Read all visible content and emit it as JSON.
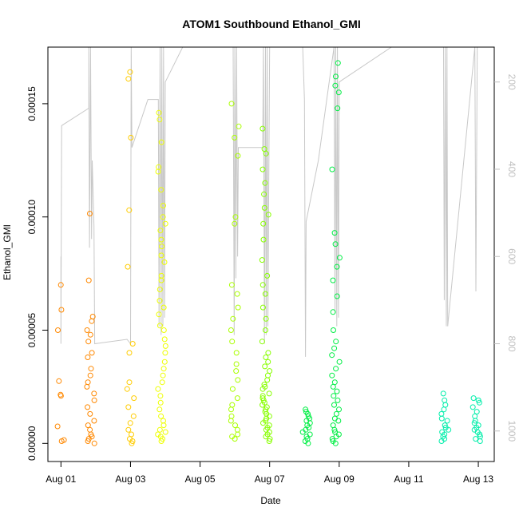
{
  "chart_data": {
    "type": "scatter",
    "title": "ATOM1 Southbound Ethanol_GMI",
    "xlabel": "Date",
    "ylabel": "Ethanol_GMI",
    "x_ticks": [
      {
        "day": 1,
        "label": "Aug 01"
      },
      {
        "day": 3,
        "label": "Aug 03"
      },
      {
        "day": 5,
        "label": "Aug 05"
      },
      {
        "day": 7,
        "label": "Aug 07"
      },
      {
        "day": 9,
        "label": "Aug 09"
      },
      {
        "day": 11,
        "label": "Aug 11"
      },
      {
        "day": 13,
        "label": "Aug 13"
      }
    ],
    "xlim": [
      "2016-07-31T15:00",
      "2016-08-13T11:00"
    ],
    "ylim": [
      -8e-06,
      0.000175
    ],
    "y_ticks": [
      {
        "value": 0.0,
        "label": "0.00000"
      },
      {
        "value": 5e-05,
        "label": "0.00005"
      },
      {
        "value": 0.0001,
        "label": "0.00010"
      },
      {
        "value": 0.00015,
        "label": "0.00015"
      }
    ],
    "secondary_axis": {
      "side": "right",
      "quantity": "altitude",
      "reversed": true,
      "range": [
        1070,
        120
      ],
      "ticks": [
        200,
        400,
        600,
        800,
        1000
      ],
      "color": "#c0c0c0"
    },
    "flights": [
      {
        "day": 1.0,
        "color": "#FF8800",
        "values": [
          7e-05,
          5.9e-05,
          5e-05,
          2.75e-05,
          2.15e-05,
          2.1e-05,
          7.5e-06,
          1.5e-06,
          1e-06
        ]
      },
      {
        "day": 1.85,
        "color": "#FF8800",
        "values": [
          0.0001015,
          7.2e-05,
          5.6e-05,
          5.4e-05,
          5e-05,
          4.8e-05,
          4.5e-05,
          4e-05,
          3.8e-05,
          3.3e-05,
          3e-05,
          2.7e-05,
          2.5e-05,
          2.2e-05,
          1.9e-05,
          1.6e-05,
          1.3e-05,
          1e-05,
          8e-06,
          6e-06,
          4e-06,
          3e-06,
          2e-06,
          1e-06,
          0.0
        ]
      },
      {
        "day": 3.0,
        "color": "#FFCC00",
        "values": [
          0.000164,
          0.000161,
          0.000135,
          0.000103,
          7.8e-05,
          4.4e-05,
          4e-05,
          2.7e-05,
          2.4e-05,
          2e-05,
          1.6e-05,
          1.2e-05,
          9e-06,
          6e-06,
          4e-06,
          2e-06,
          1e-06,
          0.0
        ]
      },
      {
        "day": 3.9,
        "color": "#EEFF00",
        "values": [
          0.000146,
          0.000143,
          0.000133,
          0.000122,
          0.00012,
          0.000112,
          0.000105,
          0.0001,
          9.7e-05,
          9.4e-05,
          9e-05,
          8.7e-05,
          8.3e-05,
          8e-05,
          7.4e-05,
          7.2e-05,
          6.8e-05,
          6.3e-05,
          6e-05,
          5.7e-05,
          5.2e-05,
          5e-05,
          4.6e-05,
          4.3e-05,
          4e-05,
          3.6e-05,
          3.3e-05,
          3e-05,
          2.7e-05,
          2.4e-05,
          2.1e-05,
          1.8e-05,
          1.5e-05,
          1.2e-05,
          1e-05,
          8e-06,
          6e-06,
          5e-06,
          4e-06,
          3e-06,
          2e-06,
          1e-06
        ]
      },
      {
        "day": 6.0,
        "color": "#AAFF00",
        "values": [
          0.00015,
          0.00014,
          0.000135,
          0.000127,
          0.0001,
          9.7e-05,
          7e-05,
          6.6e-05,
          6e-05,
          5.5e-05,
          5e-05,
          4.5e-05,
          4e-05,
          3.5e-05,
          3.2e-05,
          2.8e-05,
          2.4e-05,
          2e-05,
          1.7e-05,
          1.5e-05,
          1.2e-05,
          1e-05,
          8e-06,
          6e-06,
          4e-06,
          3e-06,
          2e-06
        ]
      },
      {
        "day": 6.9,
        "color": "#88FF00",
        "values": [
          0.000139,
          0.00013,
          0.000128,
          0.000121,
          0.000115,
          0.00011,
          0.000104,
          0.000101,
          9.7e-05,
          9e-05,
          8.1e-05,
          7.4e-05,
          7e-05,
          6.6e-05,
          6e-05,
          5.5e-05,
          5e-05,
          4.5e-05,
          4e-05,
          3.8e-05,
          3.6e-05,
          3.4e-05,
          3.2e-05,
          3e-05,
          2.8e-05,
          2.6e-05,
          2.5e-05,
          2.4e-05,
          2.2e-05,
          2.1e-05,
          2e-05,
          1.9e-05,
          1.8e-05,
          1.7e-05,
          1.6e-05,
          1.5e-05,
          1.4e-05,
          1.3e-05,
          1.2e-05,
          1.1e-05,
          1e-05,
          9e-06,
          8e-06,
          7e-06,
          6e-06,
          5e-06,
          4e-06,
          3e-06,
          2e-06,
          1e-06
        ]
      },
      {
        "day": 8.05,
        "color": "#00EE44",
        "values": [
          1.5e-05,
          1.4e-05,
          1.3e-05,
          1.2e-05,
          1.1e-05,
          1e-05,
          9e-06,
          8e-06,
          7e-06,
          6e-06,
          5e-06,
          4e-06,
          3e-06,
          2e-06,
          1e-06,
          0.0
        ]
      },
      {
        "day": 8.9,
        "color": "#00EE44",
        "values": [
          0.000168,
          0.000162,
          0.000158,
          0.000155,
          0.000148,
          0.000121,
          9.3e-05,
          8.8e-05,
          8.2e-05,
          7.8e-05,
          7.2e-05,
          6.5e-05,
          5.8e-05,
          5e-05,
          4.5e-05,
          4.2e-05,
          3.9e-05,
          3.6e-05,
          3.3e-05,
          3e-05,
          2.7e-05,
          2.5e-05,
          2.3e-05,
          2.1e-05,
          1.9e-05,
          1.7e-05,
          1.5e-05,
          1.3e-05,
          1.1e-05,
          1e-05,
          8e-06,
          6e-06,
          5e-06,
          4e-06,
          3e-06,
          2e-06,
          1e-06,
          0.0
        ]
      },
      {
        "day": 12.05,
        "color": "#00EEAA",
        "values": [
          2.2e-05,
          1.9e-05,
          1.7e-05,
          1.5e-05,
          1.3e-05,
          1.1e-05,
          1e-05,
          8e-06,
          7e-06,
          6e-06,
          5e-06,
          4e-06,
          3e-06,
          2e-06,
          1e-06
        ]
      },
      {
        "day": 12.95,
        "color": "#00EEAA",
        "values": [
          2e-05,
          1.9e-05,
          1.8e-05,
          1.6e-05,
          1.4e-05,
          1.2e-05,
          1e-05,
          9e-06,
          8e-06,
          7e-06,
          6e-06,
          5e-06,
          4e-06,
          3e-06,
          2e-06,
          1e-06
        ]
      }
    ],
    "altitude_trace": {
      "color": "#c8c8c8",
      "note": "aircraft altitude on secondary axis",
      "points": [
        [
          1.0,
          600
        ],
        [
          1.0,
          800
        ],
        [
          1.02,
          300
        ],
        [
          1.8,
          260
        ],
        [
          1.8,
          120
        ],
        [
          1.82,
          580
        ],
        [
          1.85,
          120
        ],
        [
          1.88,
          560
        ],
        [
          1.9,
          380
        ],
        [
          1.95,
          530
        ],
        [
          1.97,
          800
        ],
        [
          2.9,
          790
        ],
        [
          3.0,
          800
        ],
        [
          3.02,
          120
        ],
        [
          3.04,
          350
        ],
        [
          3.5,
          240
        ],
        [
          3.8,
          240
        ],
        [
          3.82,
          760
        ],
        [
          3.85,
          120
        ],
        [
          3.88,
          780
        ],
        [
          3.9,
          120
        ],
        [
          3.93,
          760
        ],
        [
          3.95,
          120
        ],
        [
          3.98,
          740
        ],
        [
          4.0,
          200
        ],
        [
          4.5,
          120
        ],
        [
          5.95,
          120
        ],
        [
          5.98,
          780
        ],
        [
          6.0,
          120
        ],
        [
          6.03,
          650
        ],
        [
          6.05,
          120
        ],
        [
          6.08,
          600
        ],
        [
          6.1,
          350
        ],
        [
          6.8,
          350
        ],
        [
          6.82,
          120
        ],
        [
          6.85,
          800
        ],
        [
          6.88,
          120
        ],
        [
          6.9,
          780
        ],
        [
          6.93,
          120
        ],
        [
          6.95,
          760
        ],
        [
          7.0,
          120
        ],
        [
          7.95,
          120
        ],
        [
          8.0,
          240
        ],
        [
          8.03,
          830
        ],
        [
          8.05,
          520
        ],
        [
          8.4,
          380
        ],
        [
          8.85,
          120
        ],
        [
          8.88,
          730
        ],
        [
          8.9,
          120
        ],
        [
          8.93,
          760
        ],
        [
          8.95,
          120
        ],
        [
          8.98,
          740
        ],
        [
          9.0,
          200
        ],
        [
          10.5,
          120
        ],
        [
          12.0,
          120
        ],
        [
          12.02,
          700
        ],
        [
          12.05,
          120
        ],
        [
          12.08,
          760
        ],
        [
          12.1,
          120
        ],
        [
          12.12,
          760
        ],
        [
          12.9,
          120
        ],
        [
          12.93,
          680
        ],
        [
          12.97,
          120
        ]
      ]
    }
  }
}
